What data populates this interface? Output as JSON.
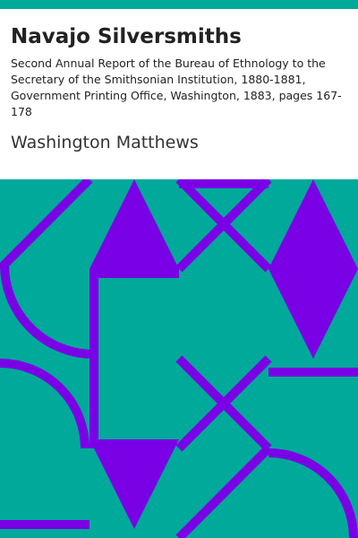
{
  "book": {
    "title": "Navajo Silversmiths",
    "subtitle": "Second Annual Report of the Bureau of Ethnology to the Secretary of the Smithsonian Institution, 1880-1881, Government Printing Office, Washington, 1883, pages 167-178",
    "author": "Washington Matthews"
  },
  "colors": {
    "background": "#00a99a",
    "header": "#ffffff",
    "pattern": "#7a00e6"
  }
}
